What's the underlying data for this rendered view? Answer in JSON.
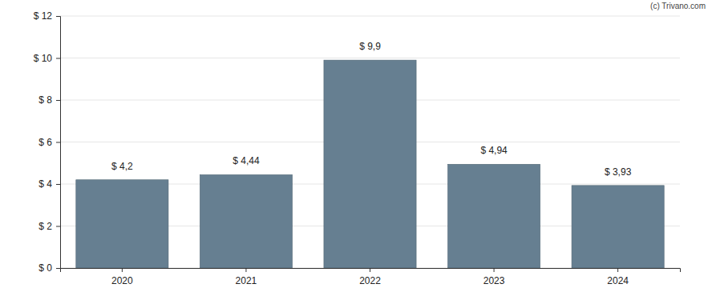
{
  "chart_data": {
    "type": "bar",
    "annotations": [
      "(c) Trivano.com"
    ],
    "categories": [
      "2020",
      "2021",
      "2022",
      "2023",
      "2024"
    ],
    "values": [
      4.2,
      4.44,
      9.9,
      4.94,
      3.93
    ],
    "value_labels": [
      "$ 4,2",
      "$ 4,44",
      "$ 9,9",
      "$ 4,94",
      "$ 3,93"
    ],
    "color": "#667f91",
    "ylim": [
      0,
      12
    ],
    "yticks": [
      {
        "value": 0,
        "label": "$ 0"
      },
      {
        "value": 2,
        "label": "$ 2"
      },
      {
        "value": 4,
        "label": "$ 4"
      },
      {
        "value": 6,
        "label": "$ 6"
      },
      {
        "value": 8,
        "label": "$ 8"
      },
      {
        "value": 10,
        "label": "$ 10"
      },
      {
        "value": 12,
        "label": "$ 12"
      }
    ],
    "grid": true,
    "data_labels": true
  }
}
